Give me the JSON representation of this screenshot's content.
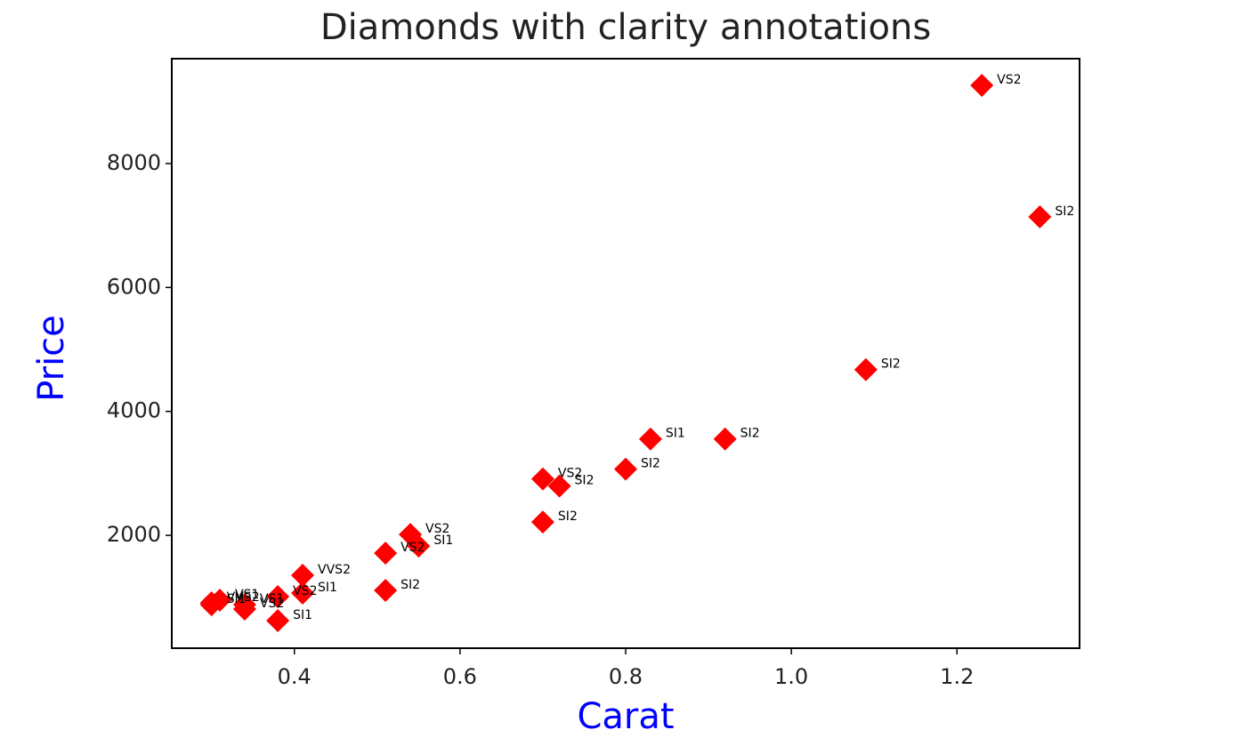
{
  "chart_data": {
    "type": "scatter",
    "title": "Diamonds with clarity annotations",
    "xlabel": "Carat",
    "ylabel": "Price",
    "axis_label_color": "#0000ff",
    "color": "#ff0000",
    "marker": "diamond",
    "x": [
      1.23,
      1.3,
      1.09,
      0.92,
      0.83,
      0.8,
      0.7,
      0.72,
      0.7,
      0.54,
      0.55,
      0.51,
      0.51,
      0.41,
      0.41,
      0.38,
      0.38,
      0.34,
      0.34,
      0.3,
      0.31,
      0.3
    ],
    "values": [
      9262,
      7140,
      4674,
      3555,
      3555,
      3068,
      2910,
      2795,
      2215,
      2014,
      1828,
      1713,
      1111,
      1355,
      1068,
      1011,
      624,
      810,
      882,
      911,
      953,
      880
    ],
    "labels": [
      "VS2",
      "SI2",
      "SI2",
      "SI2",
      "SI1",
      "SI2",
      "VS2",
      "SI2",
      "SI2",
      "VS2",
      "SI1",
      "VS2",
      "SI2",
      "VVS2",
      "SI1",
      "VS2",
      "SI1",
      "VS2",
      "VS1",
      "VVS2",
      "VS1",
      "SI1"
    ],
    "xlim": [
      0.252,
      1.348
    ],
    "ylim": [
      179,
      9692
    ],
    "xticks": [
      0.4,
      0.6,
      0.8,
      {
        "value": 1.0,
        "label": "1.0"
      },
      1.2
    ],
    "yticks": [
      2000,
      4000,
      6000,
      8000
    ]
  }
}
